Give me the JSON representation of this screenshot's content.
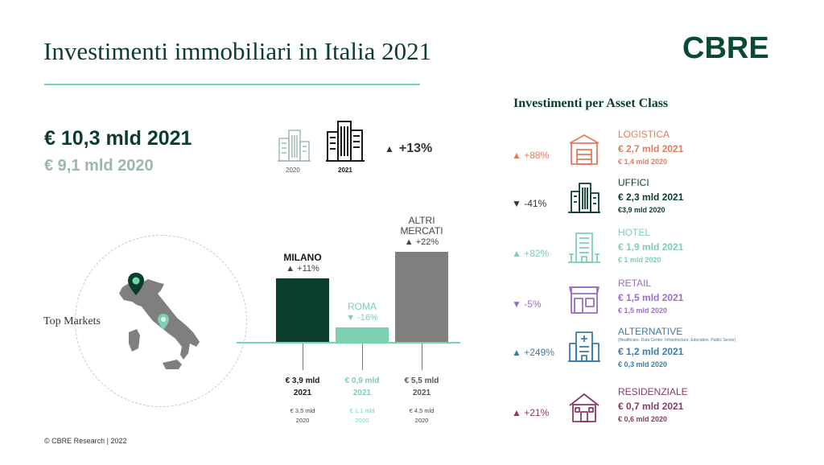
{
  "header": {
    "title": "Investimenti immobiliari in Italia 2021",
    "logo": "CBRE"
  },
  "totals": {
    "value_2021": "€ 10,3 mld 2021",
    "value_2020": "€ 9,1 mld 2020",
    "icon_year_2020": "2020",
    "icon_year_2021": "2021",
    "change": "+13%",
    "change_arrow": "▲"
  },
  "map": {
    "label": "Top Markets"
  },
  "chart_data": {
    "type": "bar",
    "title": "",
    "categories": [
      "MILANO",
      "ROMA",
      "ALTRI MERCATI"
    ],
    "values": [
      3.9,
      0.9,
      5.5
    ],
    "values_2020": [
      3.5,
      1.1,
      4.5
    ],
    "unit": "€ mld",
    "changes": [
      "▲ +11%",
      "▼ -16%",
      "▲ +22%"
    ],
    "labels_2021": [
      "€ 3,9 mld\n2021",
      "€ 0,9 mld\n2021",
      "€ 5,5 mld\n2021"
    ],
    "labels_2020": [
      "€ 3,5 mld\n2020",
      "€ 1,1 mld\n2020",
      "€ 4,5 mld\n2020"
    ],
    "bar_labels": [
      "MILANO",
      "ROMA",
      "ALTRI\nMERCATI"
    ],
    "colors": [
      "#0b3d2e",
      "#7ecfb0",
      "#7f807e"
    ],
    "label_colors": [
      "#0b3d2e",
      "#7ecfb0",
      "#7f807e"
    ]
  },
  "asset_class": {
    "title": "Investimenti  per Asset Class",
    "items": [
      {
        "name": "LOGISTICA",
        "sub": "",
        "v21": "€ 2,7 mld  2021",
        "v20": "€ 1,4 mld 2020",
        "change": "▲ +88%",
        "color": "#e07b5c",
        "icon": "warehouse-icon"
      },
      {
        "name": "UFFICI",
        "sub": "",
        "v21": "€ 2,3 mld 2021",
        "v20": "€3,9 mld 2020",
        "change": "▼ -41%",
        "color": "#0b3d2e",
        "icon": "office-building-icon"
      },
      {
        "name": "HOTEL",
        "sub": "",
        "v21": "€ 1,9 mld 2021",
        "v20": "€ 1 mld 2020",
        "change": "▲ +82%",
        "color": "#7ecfb0",
        "icon": "hotel-icon"
      },
      {
        "name": "RETAIL",
        "sub": "",
        "v21": "€ 1,5 mld 2021",
        "v20": "€ 1,5 mld 2020",
        "change": "▼ -5%",
        "color": "#9b6fc0",
        "icon": "shop-icon"
      },
      {
        "name": "ALTERNATIVE",
        "sub": "(Healthcare, Data Center, Infrastructure, Education, Public Sector)",
        "v21": "€ 1,2 mld 2021",
        "v20": "€ 0,3 mld 2020",
        "change": "▲ +249%",
        "color": "#3a7ca8",
        "icon": "hospital-icon"
      },
      {
        "name": "RESIDENZIALE",
        "sub": "",
        "v21": "€ 0,7 mld 2021",
        "v20": "€ 0,6 mld 2020",
        "change": "▲ +21%",
        "color": "#8a3a63",
        "icon": "house-icon"
      }
    ]
  },
  "footer": {
    "text": "© CBRE Research | 2022"
  }
}
